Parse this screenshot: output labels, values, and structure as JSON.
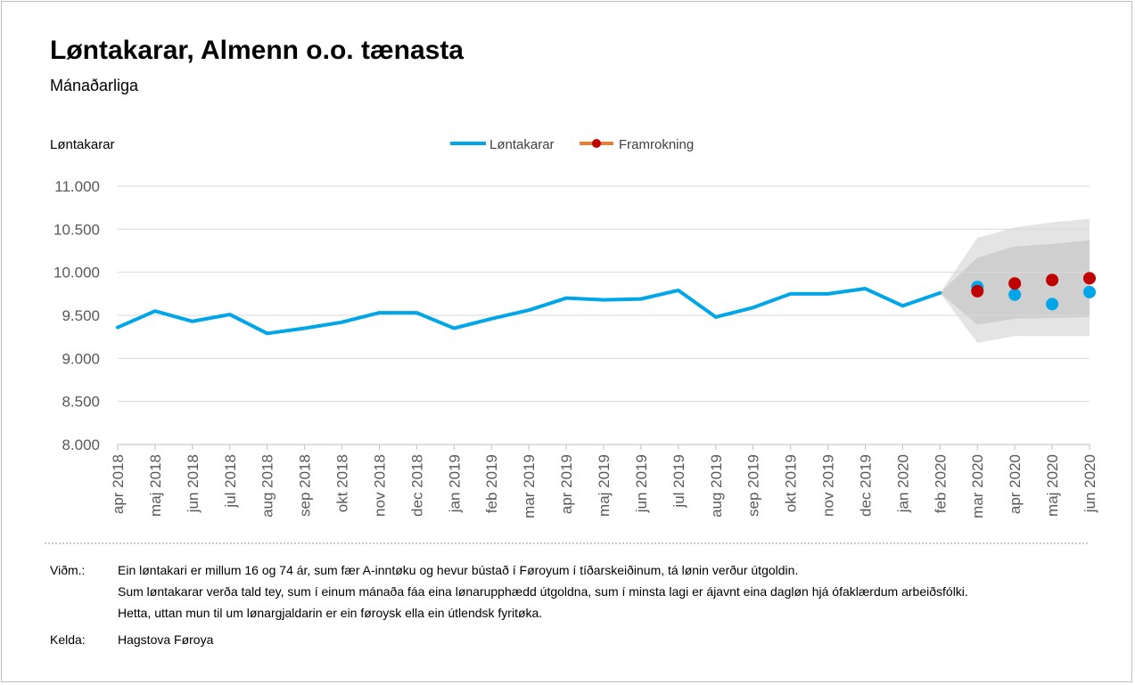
{
  "header": {
    "title": "Løntakarar, Almenn o.o. tænasta",
    "subtitle": "Mánaðarliga"
  },
  "chart_data": {
    "type": "line",
    "ylabel": "Løntakarar",
    "ylim": [
      8000,
      11000
    ],
    "yticks": [
      8000,
      8500,
      9000,
      9500,
      10000,
      10500,
      11000
    ],
    "ytick_labels": [
      "8.000",
      "8.500",
      "9.000",
      "9.500",
      "10.000",
      "10.500",
      "11.000"
    ],
    "categories": [
      "apr 2018",
      "maj 2018",
      "jun 2018",
      "jul 2018",
      "aug 2018",
      "sep 2018",
      "okt 2018",
      "nov 2018",
      "dec 2018",
      "jan 2019",
      "feb 2019",
      "mar 2019",
      "apr 2019",
      "maj 2019",
      "jun 2019",
      "jul 2019",
      "aug 2019",
      "sep 2019",
      "okt 2019",
      "nov 2019",
      "dec 2019",
      "jan 2020",
      "feb 2020",
      "mar 2020",
      "apr 2020",
      "maj 2020",
      "jun 2020"
    ],
    "grid": true,
    "legend_position": "top-center",
    "series": [
      {
        "name": "Løntakarar",
        "color": "#00a6e8",
        "style": "line",
        "values": [
          9360,
          9550,
          9430,
          9510,
          9290,
          9350,
          9420,
          9530,
          9530,
          9350,
          9460,
          9560,
          9700,
          9680,
          9690,
          9790,
          9480,
          9590,
          9750,
          9750,
          9810,
          9610,
          9760,
          null,
          null,
          null,
          null
        ]
      },
      {
        "name": "Løntakarar (actual, forecast period)",
        "color": "#00a6e8",
        "style": "markers",
        "values": [
          null,
          null,
          null,
          null,
          null,
          null,
          null,
          null,
          null,
          null,
          null,
          null,
          null,
          null,
          null,
          null,
          null,
          null,
          null,
          null,
          null,
          null,
          null,
          9830,
          9740,
          9630,
          9770
        ]
      },
      {
        "name": "Framrokning",
        "color": "#c00000",
        "legend_line_color": "#ed7d31",
        "style": "markers",
        "values": [
          null,
          null,
          null,
          null,
          null,
          null,
          null,
          null,
          null,
          null,
          null,
          null,
          null,
          null,
          null,
          null,
          null,
          null,
          null,
          null,
          null,
          null,
          null,
          9780,
          9870,
          9910,
          9930
        ]
      }
    ],
    "forecast_bands": {
      "anchor_value": 9760,
      "outer_upper": [
        10400,
        10520,
        10580,
        10620
      ],
      "outer_lower": [
        9180,
        9260,
        9260,
        9260
      ],
      "inner_upper": [
        10170,
        10300,
        10330,
        10370
      ],
      "inner_lower": [
        9390,
        9460,
        9470,
        9480
      ],
      "outer_color": "#e4e4e4",
      "inner_color": "#cfcfcf"
    }
  },
  "notes": {
    "label": "Viðm.:",
    "lines": [
      "Ein løntakari er millum 16 og 74 ár, sum fær A-inntøku og hevur bústað í Føroyum í tíðarskeiðinum, tá lønin verður útgoldin.",
      "Sum løntakarar verða tald tey, sum í einum mánaða fáa eina lønarupphædd útgoldna, sum í minsta lagi er ájavnt eina dagløn hjá ófaklærdum arbeiðsfólki.",
      "Hetta, uttan mun til um lønargjaldarin er ein føroysk ella ein útlendsk fyritøka."
    ],
    "source_label": "Kelda:",
    "source": "Hagstova Føroya"
  }
}
